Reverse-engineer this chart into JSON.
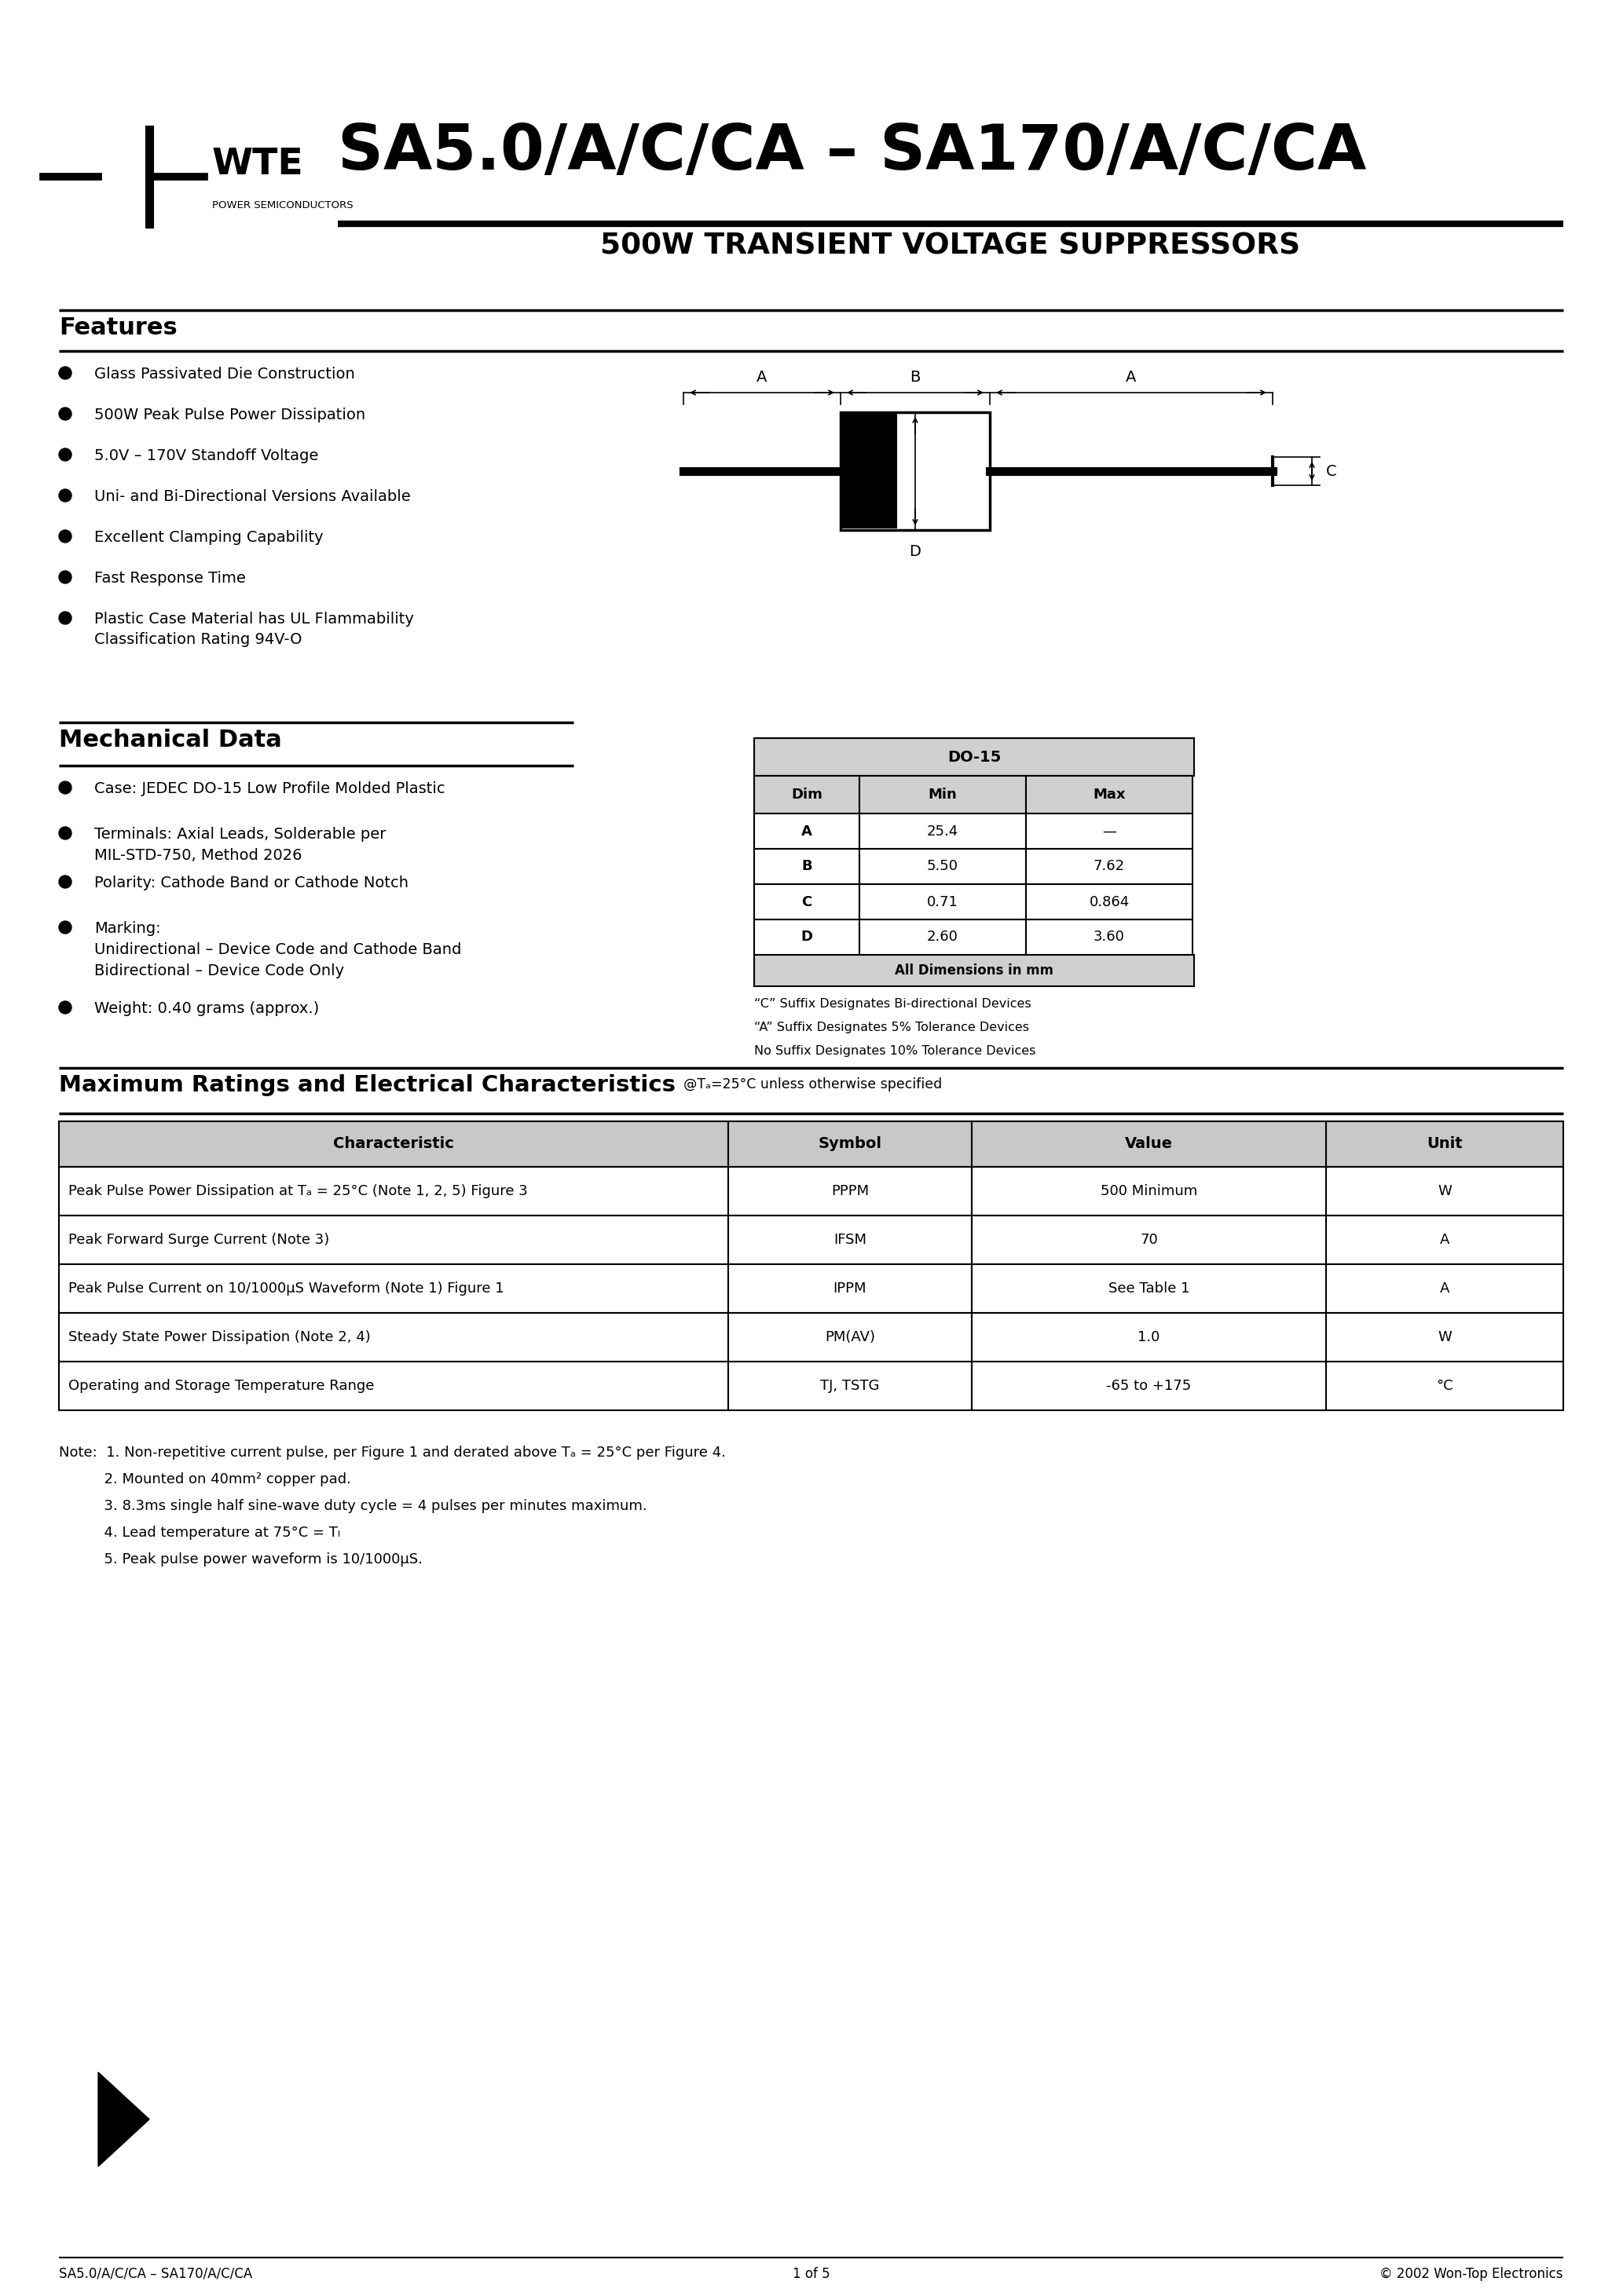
{
  "page_title": "SA5.0/A/C/CA – SA170/A/C/CA",
  "page_subtitle": "500W TRANSIENT VOLTAGE SUPPRESSORS",
  "company_name": "WTE",
  "company_sub": "POWER SEMICONDUCTORS",
  "features_title": "Features",
  "features": [
    "Glass Passivated Die Construction",
    "500W Peak Pulse Power Dissipation",
    "5.0V – 170V Standoff Voltage",
    "Uni- and Bi-Directional Versions Available",
    "Excellent Clamping Capability",
    "Fast Response Time",
    "Plastic Case Material has UL Flammability\nClassification Rating 94V-O"
  ],
  "mech_title": "Mechanical Data",
  "mech_items": [
    "Case: JEDEC DO-15 Low Profile Molded Plastic",
    "Terminals: Axial Leads, Solderable per\nMIL-STD-750, Method 2026",
    "Polarity: Cathode Band or Cathode Notch",
    "Marking:\nUnidirectional – Device Code and Cathode Band\nBidirectional – Device Code Only",
    "Weight: 0.40 grams (approx.)"
  ],
  "dim_table_title": "DO-15",
  "dim_headers": [
    "Dim",
    "Min",
    "Max"
  ],
  "dim_rows": [
    [
      "A",
      "25.4",
      "—"
    ],
    [
      "B",
      "5.50",
      "7.62"
    ],
    [
      "C",
      "0.71",
      "0.864"
    ],
    [
      "D",
      "2.60",
      "3.60"
    ]
  ],
  "dim_footer": "All Dimensions in mm",
  "dim_notes": [
    "“C” Suffix Designates Bi-directional Devices",
    "“A” Suffix Designates 5% Tolerance Devices",
    "No Suffix Designates 10% Tolerance Devices"
  ],
  "ratings_title": "Maximum Ratings and Electrical Characteristics",
  "ratings_subtitle": "@Tₐ=25°C unless otherwise specified",
  "table_headers": [
    "Characteristic",
    "Symbol",
    "Value",
    "Unit"
  ],
  "table_rows": [
    [
      "Peak Pulse Power Dissipation at Tₐ = 25°C (Note 1, 2, 5) Figure 3",
      "PPPM",
      "500 Minimum",
      "W"
    ],
    [
      "Peak Forward Surge Current (Note 3)",
      "IFSM",
      "70",
      "A"
    ],
    [
      "Peak Pulse Current on 10/1000μS Waveform (Note 1) Figure 1",
      "IPPM",
      "See Table 1",
      "A"
    ],
    [
      "Steady State Power Dissipation (Note 2, 4)",
      "PM(AV)",
      "1.0",
      "W"
    ],
    [
      "Operating and Storage Temperature Range",
      "TJ, TSTG",
      "-65 to +175",
      "°C"
    ]
  ],
  "notes_line1": "Note:  1. Non-repetitive current pulse, per Figure 1 and derated above Tₐ = 25°C per Figure 4.",
  "notes_line2": "          2. Mounted on 40mm² copper pad.",
  "notes_line3": "          3. 8.3ms single half sine-wave duty cycle = 4 pulses per minutes maximum.",
  "notes_line4": "          4. Lead temperature at 75°C = Tₗ",
  "notes_line5": "          5. Peak pulse power waveform is 10/1000μS.",
  "footer_left": "SA5.0/A/C/CA – SA170/A/C/CA",
  "footer_center": "1 of 5",
  "footer_right": "© 2002 Won-Top Electronics",
  "bg_color": "#ffffff"
}
